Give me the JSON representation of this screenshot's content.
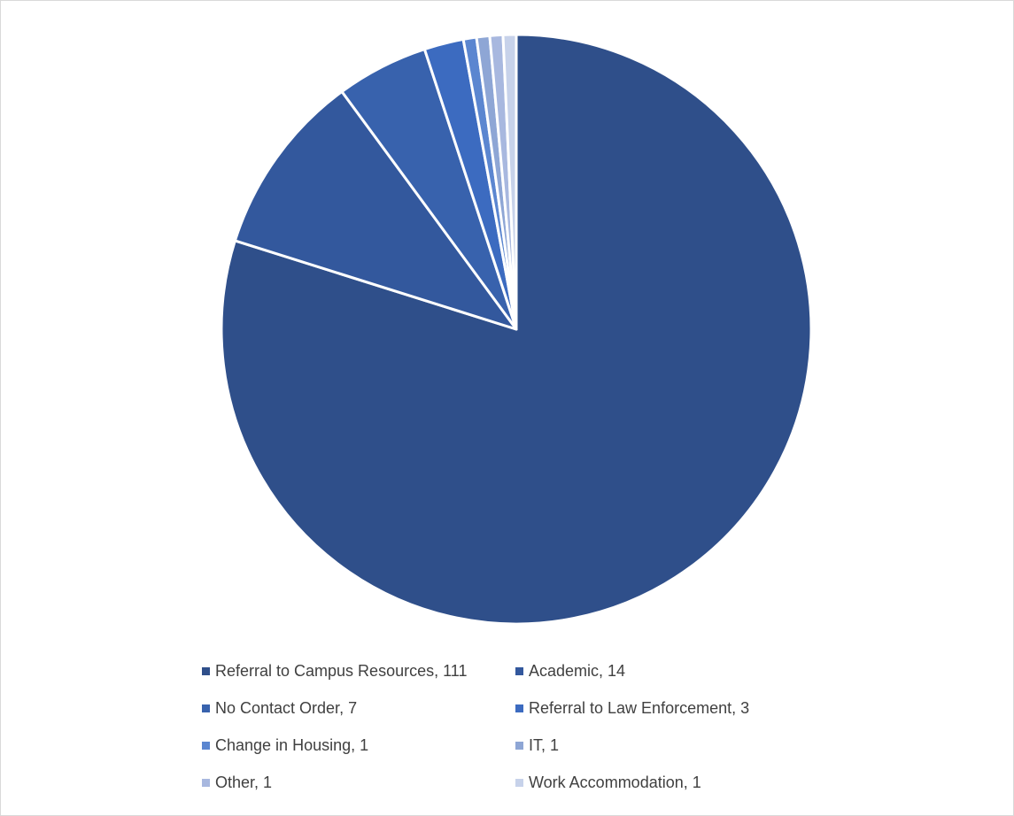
{
  "chart_data": {
    "type": "pie",
    "title": "",
    "categories": [
      "Referral to Campus Resources",
      "Academic",
      "No Contact Order",
      "Referral to Law Enforcement",
      "Change in Housing",
      "IT",
      "Other",
      "Work Accommodation"
    ],
    "values": [
      111,
      14,
      7,
      3,
      1,
      1,
      1,
      1
    ],
    "legend_labels": [
      "Referral to Campus Resources, 111",
      "Academic, 14",
      "No Contact Order, 7",
      "Referral to Law Enforcement, 3",
      "Change in Housing, 1",
      "IT, 1",
      "Other, 1",
      "Work Accommodation, 1"
    ],
    "colors": [
      "#2f4f8a",
      "#33589d",
      "#3862ad",
      "#3c6bc0",
      "#5b86d0",
      "#8ea6d5",
      "#a8b8df",
      "#c7d2ea"
    ],
    "legend_position": "bottom",
    "start_angle_deg": 0,
    "direction": "clockwise"
  }
}
